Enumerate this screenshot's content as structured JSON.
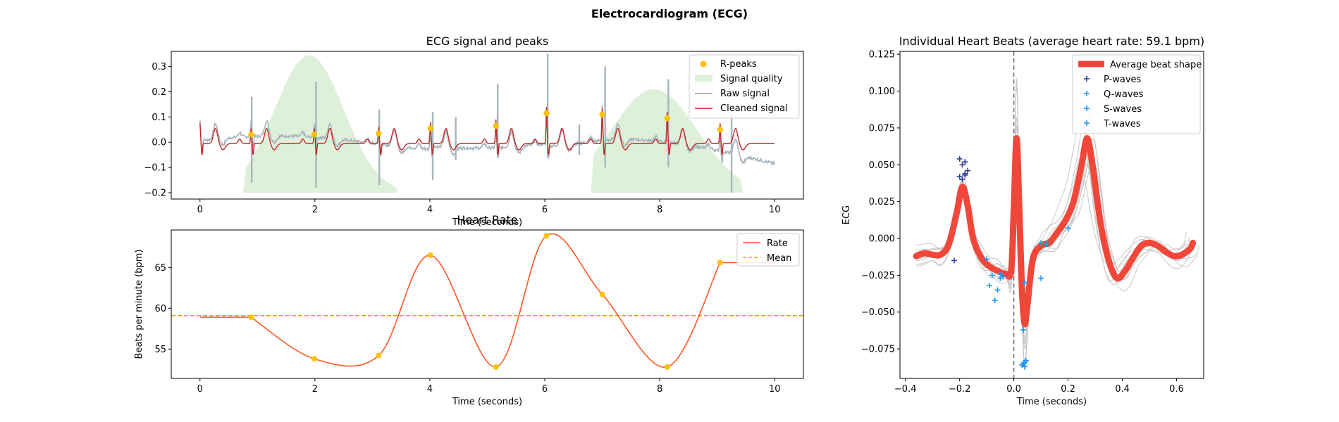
{
  "suptitle": "Electrocardiogram (ECG)",
  "colors": {
    "rpeak": "#FFC107",
    "quality": "#DFF0DA",
    "raw": "#A7B4BC",
    "cleaned": "#C62828",
    "rate": "#FF5722",
    "mean": "#FF9800",
    "avg_beat": "#F0473A",
    "beat_lines": "#C8C8C8",
    "p_marker": "#2E3F9E",
    "qst_marker": "#2196F3",
    "vline": "#666666"
  },
  "chart_data": [
    {
      "id": "ecg",
      "type": "line",
      "title": "ECG signal and peaks",
      "xlabel": "Time (seconds)",
      "ylabel": "",
      "xlim": [
        -0.5,
        10.5
      ],
      "ylim": [
        -0.225,
        0.36
      ],
      "xticks": [
        "0",
        "2",
        "4",
        "6",
        "8",
        "10"
      ],
      "xtick_values": [
        0,
        2,
        4,
        6,
        8,
        10
      ],
      "yticks": [
        "−0.2",
        "−0.1",
        "0.0",
        "0.1",
        "0.2",
        "0.3"
      ],
      "ytick_values": [
        -0.2,
        -0.1,
        0.0,
        0.1,
        0.2,
        0.3
      ],
      "legend": [
        "R-peaks",
        "Signal quality",
        "Raw signal",
        "Cleaned signal"
      ],
      "legend_position": "top-right",
      "rpeaks": {
        "x": [
          0.89,
          1.99,
          3.11,
          4.01,
          5.15,
          6.03,
          7.0,
          8.13,
          9.05
        ],
        "y": [
          0.03,
          0.03,
          0.035,
          0.055,
          0.065,
          0.115,
          0.11,
          0.095,
          0.05
        ]
      },
      "quality_peaks": [
        [
          1.9,
          0.345,
          0.6
        ],
        [
          7.9,
          0.21,
          0.75
        ]
      ],
      "quality_base": -0.2
    },
    {
      "id": "hr",
      "type": "line",
      "title": "Heart Rate",
      "xlabel": "Time (seconds)",
      "ylabel": "Beats per minute (bpm)",
      "xlim": [
        -0.5,
        10.5
      ],
      "ylim": [
        51.4,
        69.6
      ],
      "xticks": [
        "0",
        "2",
        "4",
        "6",
        "8",
        "10"
      ],
      "xtick_values": [
        0,
        2,
        4,
        6,
        8,
        10
      ],
      "yticks": [
        "55",
        "60",
        "65"
      ],
      "ytick_values": [
        55,
        60,
        65
      ],
      "legend": [
        "Rate",
        "Mean"
      ],
      "legend_position": "top-right",
      "mean": 59.1,
      "x": [
        0,
        0.89,
        1.99,
        3.11,
        4.01,
        5.15,
        6.03,
        7.0,
        8.13,
        9.05,
        10.0
      ],
      "y": [
        58.9,
        58.9,
        53.8,
        54.2,
        66.5,
        52.8,
        68.9,
        61.7,
        52.8,
        65.6,
        65.6
      ]
    },
    {
      "id": "beats",
      "type": "line",
      "title": "Individual Heart Beats (average heart rate: 59.1 bpm)",
      "xlabel": "Time (seconds)",
      "ylabel": "ECG",
      "xlim": [
        -0.42,
        0.7
      ],
      "ylim": [
        -0.095,
        0.127
      ],
      "xticks": [
        "−0.4",
        "−0.2",
        "0.0",
        "0.2",
        "0.4",
        "0.6"
      ],
      "xtick_values": [
        -0.4,
        -0.2,
        0.0,
        0.2,
        0.4,
        0.6
      ],
      "yticks": [
        "−0.075",
        "−0.050",
        "−0.025",
        "0.000",
        "0.025",
        "0.050",
        "0.075",
        "0.100",
        "0.125"
      ],
      "ytick_values": [
        -0.075,
        -0.05,
        -0.025,
        0.0,
        0.025,
        0.05,
        0.075,
        0.1,
        0.125
      ],
      "legend": [
        "Average beat shape",
        "P-waves",
        "Q-waves",
        "S-waves",
        "T-waves"
      ],
      "legend_position": "top-right",
      "avg_x": [
        -0.36,
        -0.33,
        -0.3,
        -0.27,
        -0.24,
        -0.21,
        -0.19,
        -0.17,
        -0.15,
        -0.12,
        -0.09,
        -0.06,
        -0.03,
        -0.01,
        0.0,
        0.01,
        0.02,
        0.03,
        0.04,
        0.05,
        0.07,
        0.1,
        0.13,
        0.16,
        0.19,
        0.22,
        0.25,
        0.27,
        0.29,
        0.32,
        0.35,
        0.38,
        0.41,
        0.44,
        0.47,
        0.5,
        0.53,
        0.56,
        0.59,
        0.62,
        0.65,
        0.66
      ],
      "avg_y": [
        -0.012,
        -0.01,
        -0.011,
        -0.011,
        -0.004,
        0.018,
        0.035,
        0.022,
        0.0,
        -0.013,
        -0.019,
        -0.022,
        -0.024,
        -0.022,
        0.02,
        0.068,
        0.02,
        -0.035,
        -0.058,
        -0.045,
        -0.014,
        -0.005,
        -0.003,
        0.004,
        0.012,
        0.025,
        0.05,
        0.068,
        0.05,
        0.01,
        -0.015,
        -0.027,
        -0.022,
        -0.013,
        -0.005,
        -0.003,
        -0.005,
        -0.009,
        -0.012,
        -0.011,
        -0.007,
        -0.003
      ],
      "p_waves": {
        "x": [
          -0.2,
          -0.19,
          -0.18,
          -0.17,
          -0.18,
          -0.2,
          -0.19,
          -0.18,
          -0.22
        ],
        "y": [
          0.054,
          0.05,
          0.052,
          0.046,
          0.043,
          0.042,
          0.04,
          0.044,
          -0.015
        ]
      },
      "q_waves": {
        "x": [
          -0.1,
          -0.09,
          -0.07,
          -0.06,
          -0.05,
          -0.04,
          -0.08,
          -0.05
        ],
        "y": [
          -0.014,
          -0.032,
          -0.042,
          -0.035,
          -0.027,
          -0.026,
          -0.025,
          -0.024
        ]
      },
      "s_waves": {
        "x": [
          0.03,
          0.035,
          0.04,
          0.04,
          0.045,
          0.04,
          0.035
        ],
        "y": [
          -0.086,
          -0.085,
          -0.084,
          -0.087,
          -0.083,
          -0.03,
          -0.062
        ]
      },
      "t_waves": {
        "x": [
          0.1,
          0.2,
          0.1,
          0.12
        ],
        "y": [
          -0.003,
          0.007,
          -0.027,
          -0.004
        ]
      }
    }
  ]
}
